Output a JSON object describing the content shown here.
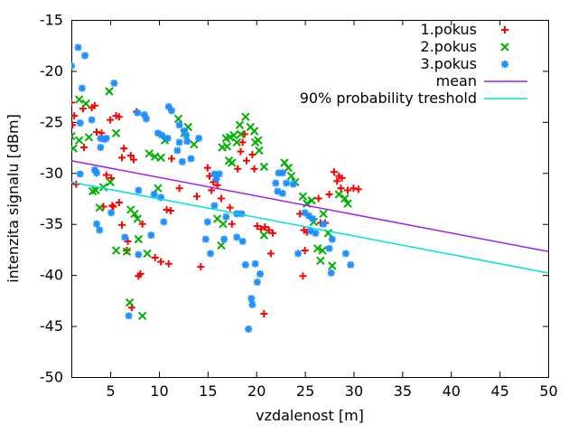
{
  "chart_data": {
    "type": "scatter",
    "title": "",
    "xlabel": "vzdalenost [m]",
    "ylabel": "intenzita signalu [dBm]",
    "xlim": [
      1,
      50
    ],
    "ylim": [
      -50,
      -15
    ],
    "xticks": [
      5,
      10,
      15,
      20,
      25,
      30,
      35,
      40,
      45,
      50
    ],
    "yticks": [
      -50,
      -45,
      -40,
      -35,
      -30,
      -25,
      -20,
      -15
    ],
    "grid": false,
    "legend_position": "top-right-inside",
    "colors": {
      "series1": "#ff0000",
      "series2": "#00b000",
      "series3": "#1e90ff",
      "mean": "#a020f0",
      "threshold": "#00e0e0",
      "axis": "#000000"
    },
    "series": [
      {
        "name": "1.pokus",
        "kind": "scatter",
        "marker": "plus",
        "color": "#ff0000",
        "points": [
          [
            1.0,
            -23.1
          ],
          [
            1.3,
            -24.4
          ],
          [
            1.1,
            -25.3
          ],
          [
            0.9,
            -31.0
          ],
          [
            1.5,
            -31.1
          ],
          [
            2.2,
            -23.7
          ],
          [
            2.3,
            -27.5
          ],
          [
            3.1,
            -23.6
          ],
          [
            3.4,
            -23.4
          ],
          [
            3.6,
            -26.0
          ],
          [
            4.1,
            -26.1
          ],
          [
            4.3,
            -33.3
          ],
          [
            4.6,
            -30.2
          ],
          [
            5.0,
            -24.8
          ],
          [
            5.1,
            -30.5
          ],
          [
            5.2,
            -33.2
          ],
          [
            5.3,
            -33.3
          ],
          [
            5.6,
            -24.4
          ],
          [
            5.9,
            -24.5
          ],
          [
            5.9,
            -32.9
          ],
          [
            6.2,
            -28.5
          ],
          [
            6.2,
            -35.1
          ],
          [
            6.4,
            -27.6
          ],
          [
            6.7,
            -37.6
          ],
          [
            6.8,
            -36.7
          ],
          [
            7.1,
            -28.3
          ],
          [
            7.2,
            -43.2
          ],
          [
            7.4,
            -28.7
          ],
          [
            7.7,
            -24.0
          ],
          [
            7.9,
            -40.1
          ],
          [
            8.1,
            -39.9
          ],
          [
            8.3,
            -35.0
          ],
          [
            9.6,
            -38.3
          ],
          [
            10.2,
            -38.7
          ],
          [
            10.8,
            -33.6
          ],
          [
            11.0,
            -38.9
          ],
          [
            11.2,
            -33.7
          ],
          [
            11.3,
            -28.6
          ],
          [
            12.1,
            -31.5
          ],
          [
            13.9,
            -32.3
          ],
          [
            14.3,
            -39.2
          ],
          [
            15.0,
            -29.5
          ],
          [
            15.2,
            -30.3
          ],
          [
            15.4,
            -31.7
          ],
          [
            15.6,
            -30.9
          ],
          [
            16.0,
            -31.2
          ],
          [
            16.4,
            -32.5
          ],
          [
            17.3,
            -33.4
          ],
          [
            17.5,
            -35.0
          ],
          [
            18.1,
            -29.6
          ],
          [
            18.4,
            -27.9
          ],
          [
            18.6,
            -27.0
          ],
          [
            18.8,
            -26.2
          ],
          [
            19.0,
            -28.8
          ],
          [
            19.6,
            -28.2
          ],
          [
            19.8,
            -29.6
          ],
          [
            20.1,
            -35.2
          ],
          [
            20.5,
            -35.5
          ],
          [
            20.9,
            -35.3
          ],
          [
            21.3,
            -35.6
          ],
          [
            21.5,
            -37.9
          ],
          [
            21.7,
            -35.9
          ],
          [
            20.8,
            -43.8
          ],
          [
            24.5,
            -34.0
          ],
          [
            24.8,
            -40.1
          ],
          [
            24.9,
            -35.6
          ],
          [
            25.0,
            -37.6
          ],
          [
            25.2,
            -35.8
          ],
          [
            26.4,
            -32.5
          ],
          [
            26.6,
            -34.9
          ],
          [
            27.1,
            -34.9
          ],
          [
            27.5,
            -32.1
          ],
          [
            28.0,
            -29.9
          ],
          [
            28.3,
            -30.8
          ],
          [
            28.5,
            -30.3
          ],
          [
            28.8,
            -30.5
          ],
          [
            28.7,
            -31.5
          ],
          [
            29.4,
            -31.7
          ],
          [
            30.0,
            -31.5
          ],
          [
            30.5,
            -31.6
          ]
        ]
      },
      {
        "name": "2.pokus",
        "kind": "scatter",
        "marker": "cross",
        "color": "#00b000",
        "points": [
          [
            1.0,
            -26.4
          ],
          [
            1.2,
            -27.6
          ],
          [
            1.8,
            -22.8
          ],
          [
            1.8,
            -26.8
          ],
          [
            2.5,
            -23.2
          ],
          [
            2.8,
            -26.5
          ],
          [
            3.2,
            -31.8
          ],
          [
            3.5,
            -31.7
          ],
          [
            3.9,
            -33.4
          ],
          [
            4.3,
            -31.4
          ],
          [
            4.9,
            -22.0
          ],
          [
            5.0,
            -30.9
          ],
          [
            5.6,
            -26.1
          ],
          [
            5.6,
            -37.6
          ],
          [
            6.7,
            -37.7
          ],
          [
            7.0,
            -42.7
          ],
          [
            7.1,
            -33.6
          ],
          [
            7.5,
            -34.0
          ],
          [
            7.8,
            -34.5
          ],
          [
            7.9,
            -36.5
          ],
          [
            8.3,
            -44.0
          ],
          [
            8.8,
            -37.9
          ],
          [
            9.0,
            -28.1
          ],
          [
            9.6,
            -28.4
          ],
          [
            9.9,
            -31.5
          ],
          [
            10.2,
            -28.5
          ],
          [
            10.6,
            -26.8
          ],
          [
            12.0,
            -24.7
          ],
          [
            12.6,
            -26.1
          ],
          [
            13.0,
            -25.5
          ],
          [
            13.6,
            -27.2
          ],
          [
            16.0,
            -34.5
          ],
          [
            16.4,
            -37.1
          ],
          [
            16.5,
            -27.5
          ],
          [
            16.6,
            -35.0
          ],
          [
            16.9,
            -26.6
          ],
          [
            17.0,
            -27.4
          ],
          [
            17.2,
            -28.8
          ],
          [
            17.3,
            -26.5
          ],
          [
            17.5,
            -29.0
          ],
          [
            17.7,
            -26.3
          ],
          [
            18.0,
            -27.0
          ],
          [
            18.3,
            -25.3
          ],
          [
            18.4,
            -26.2
          ],
          [
            18.9,
            -24.5
          ],
          [
            19.4,
            -25.5
          ],
          [
            19.8,
            -25.9
          ],
          [
            19.9,
            -27.0
          ],
          [
            20.2,
            -26.8
          ],
          [
            20.3,
            -27.8
          ],
          [
            20.8,
            -29.4
          ],
          [
            20.8,
            -36.1
          ],
          [
            22.9,
            -29.0
          ],
          [
            23.3,
            -29.5
          ],
          [
            23.6,
            -30.3
          ],
          [
            24.0,
            -30.9
          ],
          [
            24.8,
            -32.3
          ],
          [
            25.2,
            -33.0
          ],
          [
            25.7,
            -32.7
          ],
          [
            25.9,
            -34.8
          ],
          [
            26.3,
            -37.4
          ],
          [
            26.6,
            -38.6
          ],
          [
            26.8,
            -37.6
          ],
          [
            26.9,
            -34.0
          ],
          [
            27.4,
            -35.9
          ],
          [
            27.8,
            -39.1
          ],
          [
            28.5,
            -32.1
          ],
          [
            29.1,
            -32.5
          ],
          [
            29.4,
            -33.0
          ]
        ]
      },
      {
        "name": "3.pokus",
        "kind": "scatter",
        "marker": "star",
        "color": "#1e90ff",
        "points": [
          [
            1.0,
            -19.5
          ],
          [
            1.7,
            -17.7
          ],
          [
            1.9,
            -25.1
          ],
          [
            1.9,
            -30.1
          ],
          [
            2.1,
            -21.7
          ],
          [
            2.4,
            -18.5
          ],
          [
            3.1,
            -24.8
          ],
          [
            3.4,
            -29.7
          ],
          [
            3.6,
            -30.0
          ],
          [
            3.6,
            -35.0
          ],
          [
            3.9,
            -35.6
          ],
          [
            4.0,
            -26.6
          ],
          [
            4.0,
            -27.5
          ],
          [
            4.4,
            -26.7
          ],
          [
            4.6,
            -26.6
          ],
          [
            5.1,
            -33.9
          ],
          [
            5.4,
            -21.2
          ],
          [
            6.5,
            -36.3
          ],
          [
            6.9,
            -44.0
          ],
          [
            7.8,
            -24.1
          ],
          [
            7.9,
            -31.7
          ],
          [
            7.9,
            -38.0
          ],
          [
            8.5,
            -24.3
          ],
          [
            8.7,
            -24.7
          ],
          [
            9.2,
            -36.1
          ],
          [
            9.5,
            -32.1
          ],
          [
            9.9,
            -26.1
          ],
          [
            10.2,
            -32.4
          ],
          [
            10.3,
            -26.3
          ],
          [
            10.5,
            -34.8
          ],
          [
            10.9,
            -26.6
          ],
          [
            11.0,
            -23.5
          ],
          [
            11.3,
            -23.9
          ],
          [
            11.9,
            -27.8
          ],
          [
            12.1,
            -25.3
          ],
          [
            12.1,
            -27.0
          ],
          [
            12.4,
            -28.9
          ],
          [
            12.6,
            -25.9
          ],
          [
            12.8,
            -26.3
          ],
          [
            12.9,
            -26.9
          ],
          [
            13.3,
            -28.6
          ],
          [
            14.1,
            -26.6
          ],
          [
            14.8,
            -36.5
          ],
          [
            15.0,
            -34.8
          ],
          [
            15.3,
            -37.9
          ],
          [
            15.7,
            -30.1
          ],
          [
            15.7,
            -33.2
          ],
          [
            15.9,
            -30.6
          ],
          [
            16.2,
            -30.1
          ],
          [
            16.7,
            -36.5
          ],
          [
            16.9,
            -34.3
          ],
          [
            18.0,
            -34.0
          ],
          [
            18.0,
            -36.3
          ],
          [
            18.5,
            -34.0
          ],
          [
            18.6,
            -36.7
          ],
          [
            18.9,
            -39.0
          ],
          [
            19.2,
            -45.3
          ],
          [
            19.5,
            -42.3
          ],
          [
            19.6,
            -42.9
          ],
          [
            19.9,
            -38.9
          ],
          [
            20.1,
            -40.7
          ],
          [
            20.4,
            -39.9
          ],
          [
            22.0,
            -31.0
          ],
          [
            22.2,
            -31.8
          ],
          [
            22.3,
            -30.0
          ],
          [
            22.7,
            -30.0
          ],
          [
            22.7,
            -32.0
          ],
          [
            23.1,
            -31.0
          ],
          [
            23.8,
            -31.1
          ],
          [
            24.3,
            -37.9
          ],
          [
            25.0,
            -33.9
          ],
          [
            25.4,
            -34.2
          ],
          [
            25.6,
            -35.7
          ],
          [
            25.8,
            -34.5
          ],
          [
            26.1,
            -35.9
          ],
          [
            26.9,
            -35.0
          ],
          [
            27.5,
            -37.4
          ],
          [
            27.7,
            -39.8
          ],
          [
            27.8,
            -36.5
          ],
          [
            29.2,
            -37.9
          ],
          [
            29.7,
            -39.0
          ]
        ]
      },
      {
        "name": "mean",
        "kind": "line",
        "marker": "line",
        "color": "#a020f0",
        "points": [
          [
            1,
            -28.8
          ],
          [
            50,
            -37.7
          ]
        ]
      },
      {
        "name": "90% probability treshold",
        "kind": "line",
        "marker": "line",
        "color": "#00e0e0",
        "points": [
          [
            1,
            -30.9
          ],
          [
            50,
            -39.8
          ]
        ]
      }
    ]
  }
}
